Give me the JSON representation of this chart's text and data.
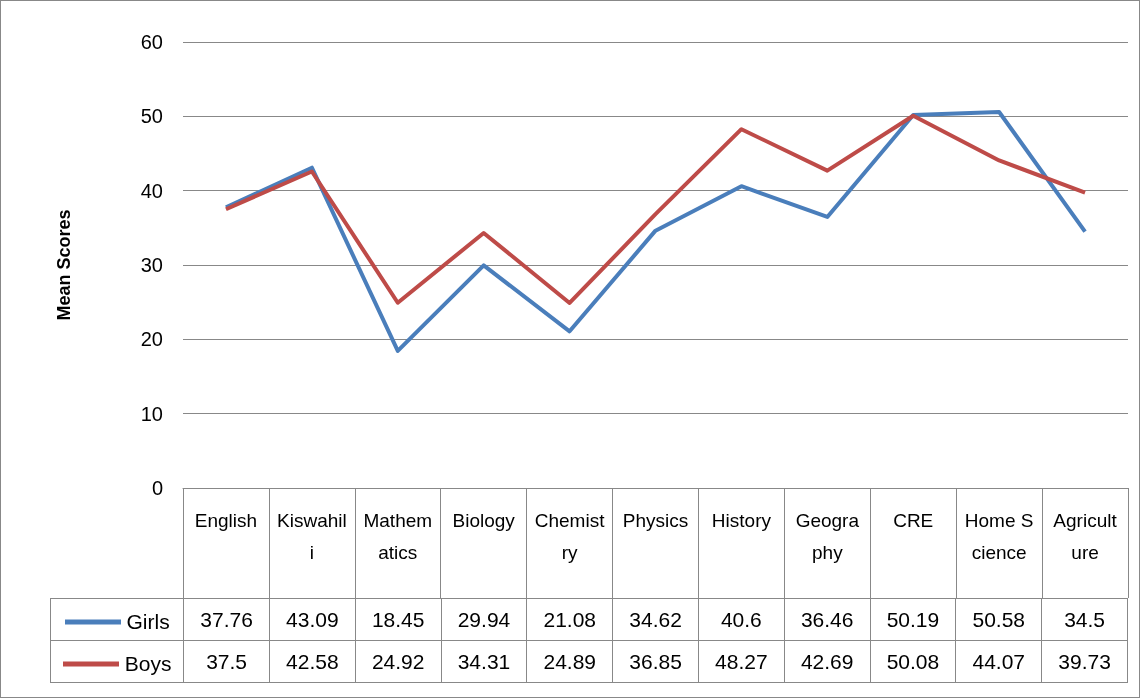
{
  "chart_data": {
    "type": "line",
    "ylabel": "Mean Scores",
    "categories": [
      "English",
      "Kiswahili",
      "Mathematics",
      "Biology",
      "Chemistry",
      "Physics",
      "History",
      "Geography",
      "CRE",
      "Home Science",
      "Agriculture"
    ],
    "series": [
      {
        "name": "Girls",
        "color": "#4a7ebb",
        "values": [
          37.76,
          43.09,
          18.45,
          29.94,
          21.08,
          34.62,
          40.6,
          36.46,
          50.19,
          50.58,
          34.5
        ]
      },
      {
        "name": "Boys",
        "color": "#be4b48",
        "values": [
          37.5,
          42.58,
          24.92,
          34.31,
          24.89,
          36.85,
          48.27,
          42.69,
          50.08,
          44.07,
          39.73
        ]
      }
    ],
    "ylim": [
      0,
      60
    ],
    "yticks": [
      0,
      10,
      20,
      30,
      40,
      50,
      60
    ],
    "grid": "y",
    "legend": "bottom",
    "marker": "none",
    "line_style": "solid",
    "data_labels": true
  }
}
